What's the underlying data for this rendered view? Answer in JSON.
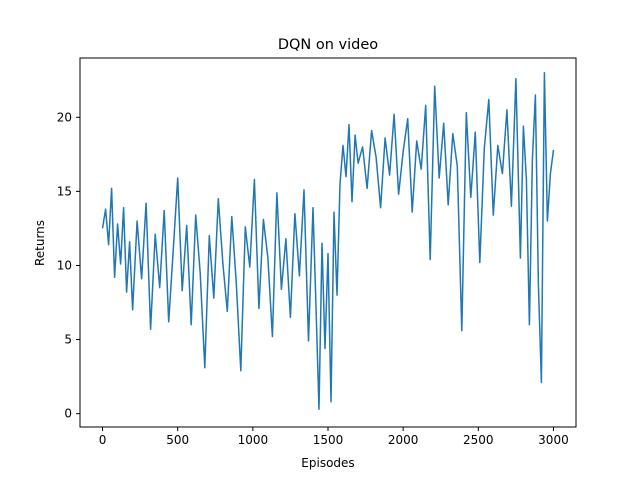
{
  "chart_data": {
    "type": "line",
    "title": "DQN on video",
    "xlabel": "Episodes",
    "ylabel": "Returns",
    "xlim": [
      -150,
      3150
    ],
    "ylim": [
      -0.9,
      24.0
    ],
    "xticks": [
      0,
      500,
      1000,
      1500,
      2000,
      2500,
      3000
    ],
    "yticks": [
      0,
      5,
      10,
      15,
      20
    ],
    "grid": false,
    "line_color": "#1f77b4",
    "series": [
      {
        "x": [
          0,
          20,
          40,
          60,
          80,
          100,
          120,
          140,
          160,
          180,
          200,
          230,
          260,
          290,
          320,
          350,
          380,
          410,
          440,
          470,
          500,
          530,
          560,
          590,
          620,
          650,
          680,
          710,
          740,
          770,
          800,
          830,
          860,
          890,
          920,
          950,
          980,
          1010,
          1040,
          1070,
          1100,
          1130,
          1160,
          1190,
          1220,
          1250,
          1280,
          1310,
          1340,
          1370,
          1400,
          1420,
          1440,
          1460,
          1480,
          1500,
          1520,
          1540,
          1560,
          1580,
          1600,
          1620,
          1640,
          1660,
          1680,
          1700,
          1730,
          1760,
          1790,
          1820,
          1850,
          1880,
          1910,
          1940,
          1970,
          2000,
          2030,
          2060,
          2090,
          2120,
          2150,
          2180,
          2210,
          2240,
          2270,
          2300,
          2330,
          2360,
          2390,
          2420,
          2450,
          2480,
          2510,
          2540,
          2570,
          2600,
          2630,
          2660,
          2690,
          2720,
          2750,
          2780,
          2800,
          2820,
          2840,
          2860,
          2880,
          2900,
          2920,
          2940,
          2960,
          2980,
          3000
        ],
        "y": [
          12.5,
          13.8,
          11.4,
          15.2,
          9.2,
          12.8,
          10.1,
          13.9,
          8.2,
          11.6,
          7.0,
          13.0,
          9.1,
          14.2,
          5.7,
          12.1,
          8.5,
          13.7,
          6.2,
          11.0,
          15.9,
          8.3,
          12.7,
          6.0,
          13.4,
          9.5,
          3.1,
          12.0,
          7.8,
          14.5,
          10.2,
          6.9,
          13.3,
          8.8,
          2.9,
          12.6,
          9.9,
          15.8,
          7.1,
          13.1,
          10.5,
          5.2,
          14.9,
          8.4,
          11.8,
          6.5,
          13.5,
          9.3,
          15.1,
          4.9,
          13.9,
          7.2,
          0.3,
          11.5,
          4.4,
          10.8,
          0.8,
          13.6,
          8.0,
          15.5,
          18.1,
          16.0,
          19.5,
          14.3,
          18.8,
          16.9,
          18.0,
          15.2,
          19.1,
          17.3,
          13.9,
          18.6,
          16.1,
          20.2,
          14.8,
          17.7,
          19.9,
          13.6,
          18.4,
          16.5,
          20.8,
          10.4,
          22.1,
          15.9,
          19.6,
          14.1,
          18.9,
          16.7,
          5.6,
          20.3,
          14.6,
          19.0,
          10.2,
          17.9,
          21.2,
          13.4,
          18.1,
          16.2,
          20.5,
          14.0,
          22.6,
          10.5,
          19.4,
          15.8,
          6.0,
          17.2,
          21.5,
          8.7,
          2.1,
          23.0,
          13.0,
          16.2,
          17.8
        ]
      }
    ]
  }
}
